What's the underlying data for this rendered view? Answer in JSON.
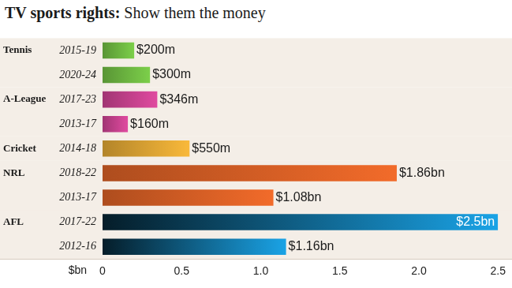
{
  "chart_data": {
    "type": "bar",
    "title": "TV sports rights:",
    "subtitle": "Show them the money",
    "orientation": "horizontal",
    "categories": [
      "2015-19",
      "2020-24",
      "2017-23",
      "2013-17",
      "2014-18",
      "2018-22",
      "2013-17",
      "2017-22",
      "2012-16"
    ],
    "groups": [
      "Tennis",
      "Tennis",
      "A-League",
      "A-League",
      "Cricket",
      "NRL",
      "NRL",
      "AFL",
      "AFL"
    ],
    "values": [
      0.2,
      0.3,
      0.346,
      0.16,
      0.55,
      1.86,
      1.08,
      2.5,
      1.16
    ],
    "value_labels": [
      "$200m",
      "$300m",
      "$346m",
      "$160m",
      "$550m",
      "$1.86bn",
      "$1.08bn",
      "$2.5bn",
      "$1.16bn"
    ],
    "colors": [
      "#7ccf4a",
      "#7ccf4a",
      "#e04aa0",
      "#e04aa0",
      "#f9b93a",
      "#f26b2a",
      "#f26b2a",
      "#1aa3e6",
      "#1aa3e6"
    ],
    "x_label": "$bn",
    "xlim": [
      0,
      2.5
    ],
    "xticks": [
      0,
      0.5,
      {
        "value": 1,
        "label": "1.0"
      },
      1.5,
      {
        "value": 2,
        "label": "2.0"
      },
      2.5
    ],
    "grid": false,
    "data_labels": true
  }
}
